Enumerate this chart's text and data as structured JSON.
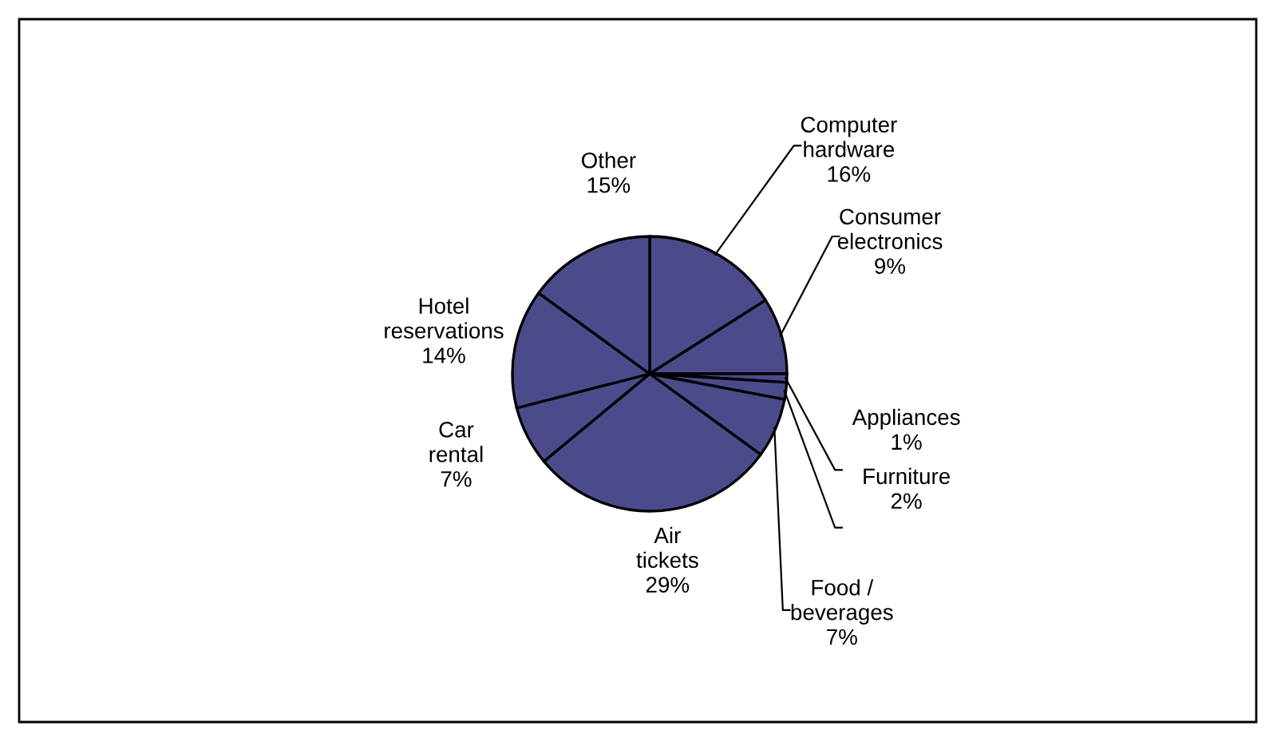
{
  "chart_data": {
    "type": "pie",
    "categories": [
      "Computer hardware",
      "Consumer electronics",
      "Appliances",
      "Furniture",
      "Food / beverages",
      "Air tickets",
      "Car rental",
      "Hotel reservations",
      "Other"
    ],
    "values": [
      16,
      9,
      1,
      2,
      7,
      29,
      7,
      14,
      15
    ],
    "colors": [
      "#4b4b8c",
      "#4b4b8c",
      "#4b4b8c",
      "#4b4b8c",
      "#4b4b8c",
      "#4b4b8c",
      "#4b4b8c",
      "#4b4b8c",
      "#4b4b8c"
    ],
    "value_labels": [
      "16%",
      "9%",
      "1%",
      "2%",
      "7%",
      "29%",
      "7%",
      "14%",
      "15%"
    ]
  }
}
